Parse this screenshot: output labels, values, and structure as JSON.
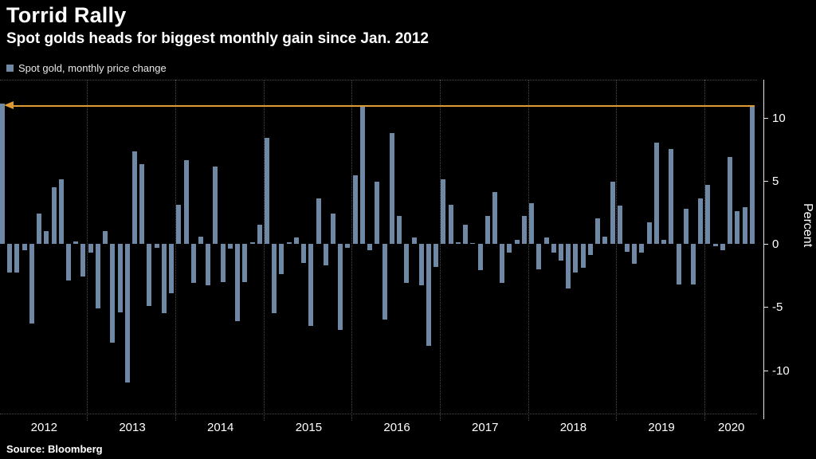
{
  "header": {
    "title": "Torrid Rally",
    "subtitle": "Spot golds heads for biggest monthly gain since Jan. 2012"
  },
  "legend": {
    "label": "Spot gold, monthly price change",
    "swatch_color": "#6f88a6"
  },
  "source": "Source: Bloomberg",
  "chart_data": {
    "type": "bar",
    "title": "Torrid Rally",
    "series_name": "Spot gold, monthly price change",
    "x_unit": "month",
    "start": "2012-01",
    "end": "2020-07",
    "years": [
      "2012",
      "2013",
      "2014",
      "2015",
      "2016",
      "2017",
      "2018",
      "2019",
      "2020"
    ],
    "months_per_year": [
      12,
      12,
      12,
      12,
      12,
      12,
      12,
      12,
      7
    ],
    "values": [
      11.1,
      -2.3,
      -2.3,
      -0.5,
      -6.3,
      2.4,
      1.0,
      4.5,
      5.1,
      -2.9,
      0.2,
      -2.6,
      -0.7,
      -5.1,
      1.0,
      -7.8,
      -5.4,
      -11.0,
      7.3,
      6.3,
      -4.9,
      -0.3,
      -5.5,
      -3.9,
      3.1,
      6.6,
      -3.1,
      0.6,
      -3.3,
      6.1,
      -3.0,
      -0.4,
      -6.1,
      -3.0,
      0.1,
      1.5,
      8.4,
      -5.5,
      -2.4,
      0.1,
      0.5,
      -1.5,
      -6.5,
      3.6,
      -1.7,
      2.4,
      -6.8,
      -0.3,
      5.4,
      10.9,
      -0.5,
      4.9,
      -6.0,
      8.8,
      2.2,
      -3.1,
      0.5,
      -3.3,
      -8.1,
      -1.8,
      5.1,
      3.1,
      0.1,
      1.5,
      0.0,
      -2.1,
      2.2,
      4.1,
      -3.1,
      -0.7,
      0.3,
      2.2,
      3.2,
      -2.0,
      0.5,
      -0.7,
      -1.3,
      -3.5,
      -2.3,
      -1.9,
      -0.9,
      2.0,
      0.6,
      4.9,
      3.0,
      -0.6,
      -1.6,
      -0.7,
      1.7,
      8.0,
      0.3,
      7.5,
      -3.2,
      2.8,
      -3.2,
      3.6,
      4.7,
      -0.2,
      -0.5,
      6.9,
      2.6,
      2.9,
      10.9
    ],
    "ylabel": "Percent",
    "yticks": [
      10,
      5,
      0,
      -5,
      -10
    ],
    "ylim": [
      -13.5,
      13
    ],
    "grid": "dotted vertical lines at year boundaries, dotted top and bottom plot borders",
    "legend_position": "top-left",
    "annotation": {
      "type": "arrow",
      "y": 10.9,
      "direction": "left",
      "from_index": 102,
      "to_index": 0,
      "color": "#de9b35"
    },
    "colors": {
      "bar": "#6f88a6",
      "background": "#000000",
      "grid": "#4a4a4a",
      "axis": "#e6e6e6",
      "arrow": "#de9b35"
    }
  }
}
